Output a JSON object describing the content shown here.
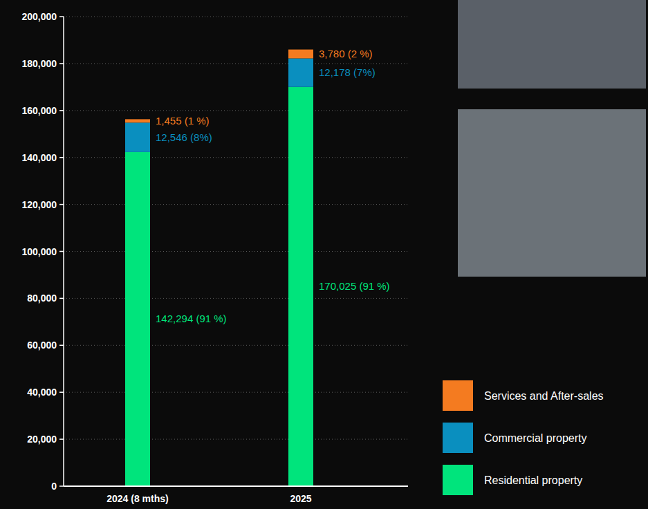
{
  "chart_data": {
    "type": "bar",
    "stacked": true,
    "categories": [
      "2024 (8 mths)",
      "2025"
    ],
    "series": [
      {
        "name": "Residential property",
        "color": "#00e47c",
        "values": [
          142294,
          170025
        ],
        "value_labels": [
          "142,294 (91 %)",
          "170,025 (91 %)"
        ]
      },
      {
        "name": "Commercial property",
        "color": "#0a8fbf",
        "values": [
          12546,
          12178
        ],
        "value_labels": [
          "12,546 (8%)",
          "12,178 (7%)"
        ]
      },
      {
        "name": "Services and After-sales",
        "color": "#f47b20",
        "values": [
          1455,
          3780
        ],
        "value_labels": [
          "1,455 (1 %)",
          "3,780 (2 %)"
        ]
      }
    ],
    "ylim": [
      0,
      200000
    ],
    "yticks": [
      0,
      {
        "value": 20000,
        "label": "20,000"
      },
      {
        "value": 40000,
        "label": "40,000"
      },
      {
        "value": 60000,
        "label": "60,000"
      },
      {
        "value": 80000,
        "label": "80,000"
      },
      {
        "value": 100000,
        "label": "100,000"
      },
      {
        "value": 120000,
        "label": "120,000"
      },
      {
        "value": 140000,
        "label": "140,000"
      },
      {
        "value": 160000,
        "label": "160,000"
      },
      {
        "value": 180000,
        "label": "180,000"
      },
      {
        "value": 200000,
        "label": "200,000"
      }
    ],
    "grid": true,
    "data_labels": true,
    "legend": "lower right"
  }
}
